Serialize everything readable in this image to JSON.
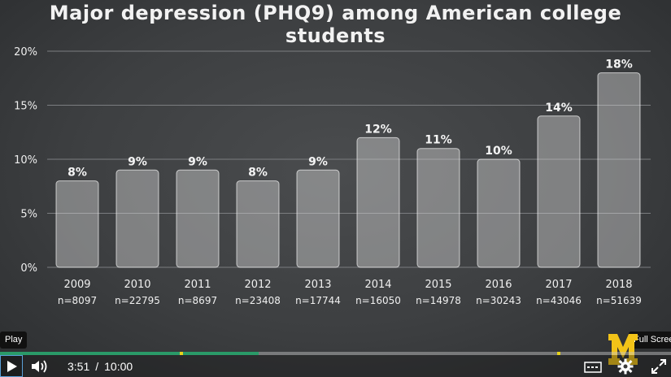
{
  "chart_data": {
    "type": "bar",
    "title": "Major depression (PHQ9) among American college students",
    "categories": [
      "2009",
      "2010",
      "2011",
      "2012",
      "2013",
      "2014",
      "2015",
      "2016",
      "2017",
      "2018"
    ],
    "sample_sizes": [
      "n=8097",
      "n=22795",
      "n=8697",
      "n=23408",
      "n=17744",
      "n=16050",
      "n=14978",
      "n=30243",
      "n=43046",
      "n=51639"
    ],
    "values": [
      8,
      9,
      9,
      8,
      9,
      12,
      11,
      10,
      14,
      18
    ],
    "data_labels": [
      "8%",
      "9%",
      "9%",
      "8%",
      "9%",
      "12%",
      "11%",
      "10%",
      "14%",
      "18%"
    ],
    "y_ticks": [
      "0%",
      "5%",
      "10%",
      "15%",
      "20%"
    ],
    "ylim": [
      0,
      20
    ],
    "grid": true
  },
  "player": {
    "tooltip_play": "Play",
    "tooltip_fullscreen": "Full Screen",
    "current_time": "3:51",
    "time_separator": "/",
    "duration": "10:00",
    "progress_fraction": 0.385,
    "colors": {
      "progress": "#2a9a68",
      "marker": "#e6d31c",
      "logo": "#f2c318"
    },
    "icons": [
      "play-icon",
      "volume-icon",
      "captions-icon",
      "gear-icon",
      "fullscreen-icon",
      "university-logo"
    ]
  }
}
